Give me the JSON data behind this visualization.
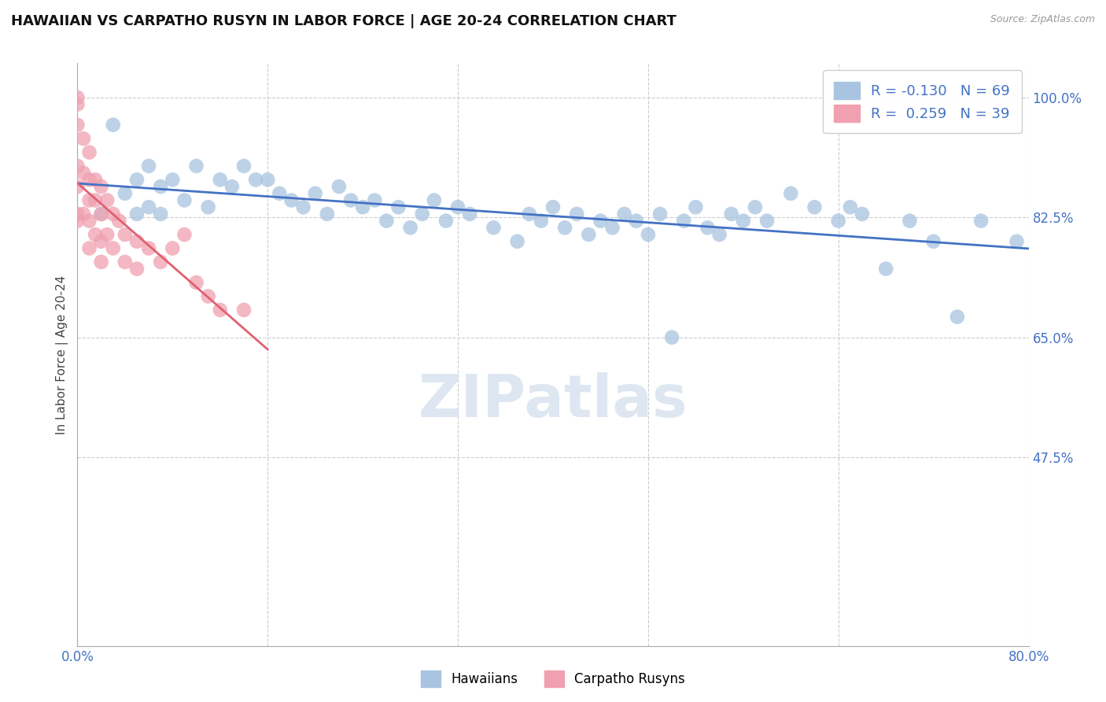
{
  "title": "HAWAIIAN VS CARPATHO RUSYN IN LABOR FORCE | AGE 20-24 CORRELATION CHART",
  "source_text": "Source: ZipAtlas.com",
  "ylabel": "In Labor Force | Age 20-24",
  "xlim": [
    0.0,
    0.8
  ],
  "ylim": [
    0.2,
    1.05
  ],
  "xticks": [
    0.0,
    0.16,
    0.32,
    0.48,
    0.64,
    0.8
  ],
  "xticklabels": [
    "0.0%",
    "",
    "",
    "",
    "",
    "80.0%"
  ],
  "yticks_right": [
    0.475,
    0.65,
    0.825,
    1.0
  ],
  "yticklabels_right": [
    "47.5%",
    "65.0%",
    "82.5%",
    "100.0%"
  ],
  "hawaiians_color": "#a8c4e0",
  "carpatho_color": "#f0a0b0",
  "trend_hawaiians_color": "#4472c4",
  "trend_carpatho_color": "#e06070",
  "R_hawaiians": -0.13,
  "N_hawaiians": 69,
  "R_carpatho": 0.259,
  "N_carpatho": 39,
  "watermark": "ZIPatlas",
  "watermark_color": "#c8d8e8",
  "legend_hawaiians": "Hawaiians",
  "legend_carpatho": "Carpatho Rusyns",
  "hawaiians_x": [
    0.02,
    0.03,
    0.04,
    0.05,
    0.05,
    0.06,
    0.06,
    0.07,
    0.07,
    0.08,
    0.09,
    0.1,
    0.11,
    0.12,
    0.13,
    0.14,
    0.15,
    0.16,
    0.17,
    0.18,
    0.19,
    0.2,
    0.21,
    0.22,
    0.23,
    0.24,
    0.25,
    0.26,
    0.27,
    0.28,
    0.29,
    0.3,
    0.31,
    0.32,
    0.33,
    0.35,
    0.37,
    0.38,
    0.39,
    0.4,
    0.41,
    0.42,
    0.43,
    0.44,
    0.45,
    0.46,
    0.47,
    0.48,
    0.49,
    0.5,
    0.51,
    0.52,
    0.53,
    0.54,
    0.55,
    0.56,
    0.57,
    0.58,
    0.6,
    0.62,
    0.64,
    0.65,
    0.66,
    0.68,
    0.7,
    0.72,
    0.74,
    0.76,
    0.79
  ],
  "hawaiians_y": [
    0.83,
    0.96,
    0.86,
    0.88,
    0.83,
    0.9,
    0.84,
    0.87,
    0.83,
    0.88,
    0.85,
    0.9,
    0.84,
    0.88,
    0.87,
    0.9,
    0.88,
    0.88,
    0.86,
    0.85,
    0.84,
    0.86,
    0.83,
    0.87,
    0.85,
    0.84,
    0.85,
    0.82,
    0.84,
    0.81,
    0.83,
    0.85,
    0.82,
    0.84,
    0.83,
    0.81,
    0.79,
    0.83,
    0.82,
    0.84,
    0.81,
    0.83,
    0.8,
    0.82,
    0.81,
    0.83,
    0.82,
    0.8,
    0.83,
    0.65,
    0.82,
    0.84,
    0.81,
    0.8,
    0.83,
    0.82,
    0.84,
    0.82,
    0.86,
    0.84,
    0.82,
    0.84,
    0.83,
    0.75,
    0.82,
    0.79,
    0.68,
    0.82,
    0.79
  ],
  "carpatho_x": [
    0.0,
    0.0,
    0.0,
    0.0,
    0.0,
    0.0,
    0.0,
    0.005,
    0.005,
    0.005,
    0.01,
    0.01,
    0.01,
    0.01,
    0.01,
    0.015,
    0.015,
    0.015,
    0.02,
    0.02,
    0.02,
    0.02,
    0.025,
    0.025,
    0.03,
    0.03,
    0.035,
    0.04,
    0.04,
    0.05,
    0.05,
    0.06,
    0.07,
    0.08,
    0.09,
    0.1,
    0.11,
    0.12,
    0.14
  ],
  "carpatho_y": [
    1.0,
    0.99,
    0.96,
    0.9,
    0.87,
    0.83,
    0.82,
    0.94,
    0.89,
    0.83,
    0.92,
    0.88,
    0.85,
    0.82,
    0.78,
    0.88,
    0.85,
    0.8,
    0.87,
    0.83,
    0.79,
    0.76,
    0.85,
    0.8,
    0.83,
    0.78,
    0.82,
    0.8,
    0.76,
    0.79,
    0.75,
    0.78,
    0.76,
    0.78,
    0.8,
    0.73,
    0.71,
    0.69,
    0.69
  ]
}
